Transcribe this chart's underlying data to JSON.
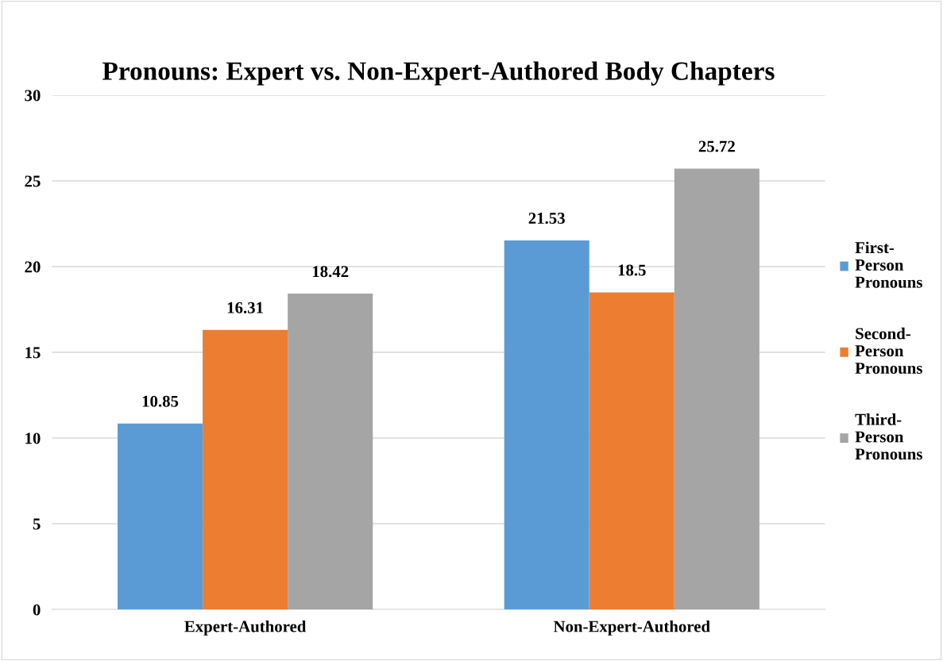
{
  "chart_data": {
    "type": "bar",
    "title": "Pronouns: Expert vs. Non-Expert-Authored Body Chapters",
    "categories": [
      "Expert-Authored",
      "Non-Expert-Authored"
    ],
    "series": [
      {
        "name": "First-Person Pronouns",
        "color": "#5b9bd5",
        "values": [
          10.85,
          21.53
        ]
      },
      {
        "name": "Second-Person Pronouns",
        "color": "#ed7d31",
        "values": [
          16.31,
          18.5
        ]
      },
      {
        "name": "Third-Person Pronouns",
        "color": "#a5a5a5",
        "values": [
          18.42,
          25.72
        ]
      }
    ],
    "ylim": [
      0,
      30
    ],
    "yticks": [
      0,
      5,
      10,
      15,
      20,
      25,
      30
    ],
    "grid": "y",
    "legend": "right",
    "data_labels": true
  }
}
